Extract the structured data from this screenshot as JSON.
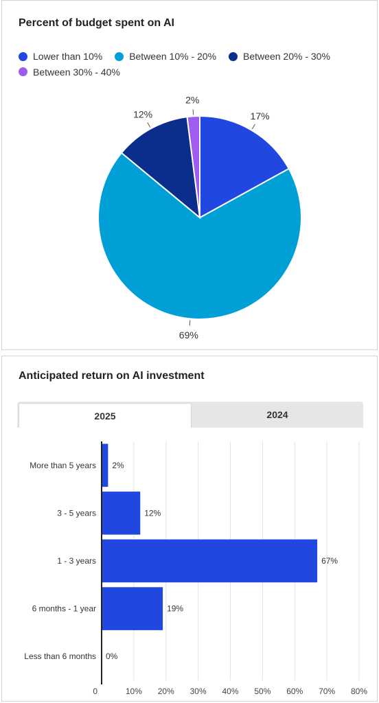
{
  "pie_card": {
    "title": "Percent of budget spent on AI"
  },
  "bar_card": {
    "title": "Anticipated return on AI investment",
    "tabs": [
      {
        "label": "2025",
        "active": true
      },
      {
        "label": "2024",
        "active": false
      }
    ]
  },
  "chart_data": [
    {
      "type": "pie",
      "title": "Percent of budget spent on AI",
      "legend_position": "top",
      "slices": [
        {
          "label": "Lower than 10%",
          "value": 17,
          "color": "#2048e0",
          "label_text": "17%"
        },
        {
          "label": "Between 10% - 20%",
          "value": 69,
          "color": "#00a0d6",
          "label_text": "69%"
        },
        {
          "label": "Between 20% - 30%",
          "value": 12,
          "color": "#0b2e8c",
          "label_text": "12%"
        },
        {
          "label": "Between 30% - 40%",
          "value": 2,
          "color": "#a05cf0",
          "label_text": "2%"
        }
      ],
      "slice_order_clockwise_from_top": [
        "Lower than 10%",
        "Between 10% - 20%",
        "Between 20% - 30%",
        "Between 30% - 40%"
      ]
    },
    {
      "type": "bar",
      "orientation": "horizontal",
      "title": "Anticipated return on AI investment",
      "categories": [
        "More than 5 years",
        "3 - 5 years",
        "1 - 3 years",
        "6 months - 1 year",
        "Less than 6 months"
      ],
      "values": [
        2,
        12,
        67,
        19,
        0
      ],
      "value_labels": [
        "2%",
        "12%",
        "67%",
        "19%",
        "0%"
      ],
      "xlim": [
        0,
        80
      ],
      "x_ticks": [
        "0",
        "10%",
        "20%",
        "30%",
        "40%",
        "50%",
        "60%",
        "70%",
        "80%"
      ],
      "bar_color": "#2048e0",
      "grid": true
    }
  ]
}
